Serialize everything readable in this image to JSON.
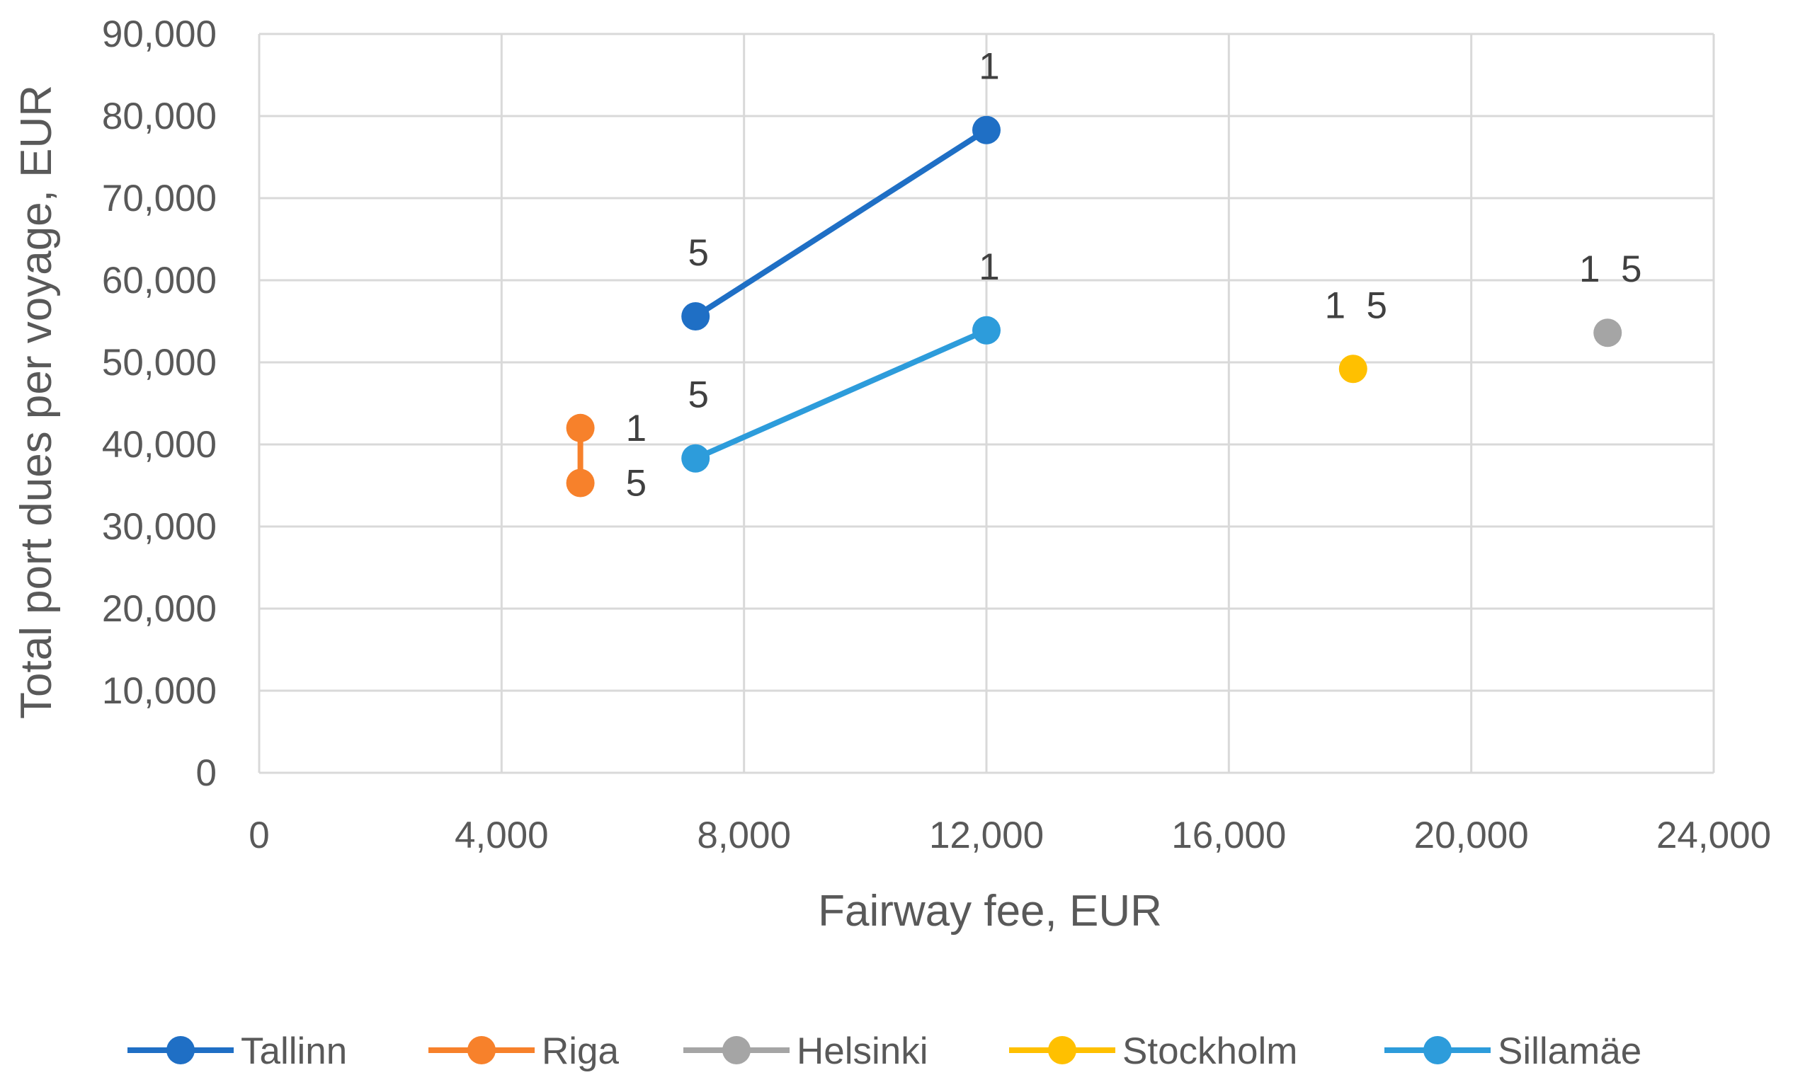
{
  "chart_data": {
    "type": "scatter",
    "title": "",
    "xlabel": "Fairway fee, EUR",
    "ylabel": "Total port dues per voyage, EUR",
    "xlim": [
      0,
      24000
    ],
    "ylim": [
      0,
      90000
    ],
    "x_ticks": [
      "0",
      "4,000",
      "8,000",
      "12,000",
      "16,000",
      "20,000",
      "24,000"
    ],
    "y_ticks": [
      "0",
      "10,000",
      "20,000",
      "30,000",
      "40,000",
      "50,000",
      "60,000",
      "70,000",
      "80,000",
      "90,000"
    ],
    "grid": true,
    "legend_position": "bottom",
    "series": [
      {
        "name": "Tallinn",
        "color": "#1f6fc5",
        "points": [
          {
            "x": 7200,
            "y": 55600,
            "label": "5"
          },
          {
            "x": 12000,
            "y": 78300,
            "label": "1"
          }
        ]
      },
      {
        "name": "Riga",
        "color": "#f7812b",
        "points": [
          {
            "x": 5300,
            "y": 42000,
            "label": "1"
          },
          {
            "x": 5300,
            "y": 35300,
            "label": "5"
          }
        ]
      },
      {
        "name": "Helsinki",
        "color": "#a5a5a5",
        "points": [
          {
            "x": 22250,
            "y": 53600,
            "label": "1  5"
          }
        ]
      },
      {
        "name": "Stockholm",
        "color": "#ffc000",
        "points": [
          {
            "x": 18050,
            "y": 49200,
            "label": "1  5"
          }
        ]
      },
      {
        "name": "Sillamäe",
        "color": "#2d9cdb",
        "points": [
          {
            "x": 7200,
            "y": 38300,
            "label": "5"
          },
          {
            "x": 12000,
            "y": 53900,
            "label": "1"
          }
        ]
      }
    ]
  }
}
